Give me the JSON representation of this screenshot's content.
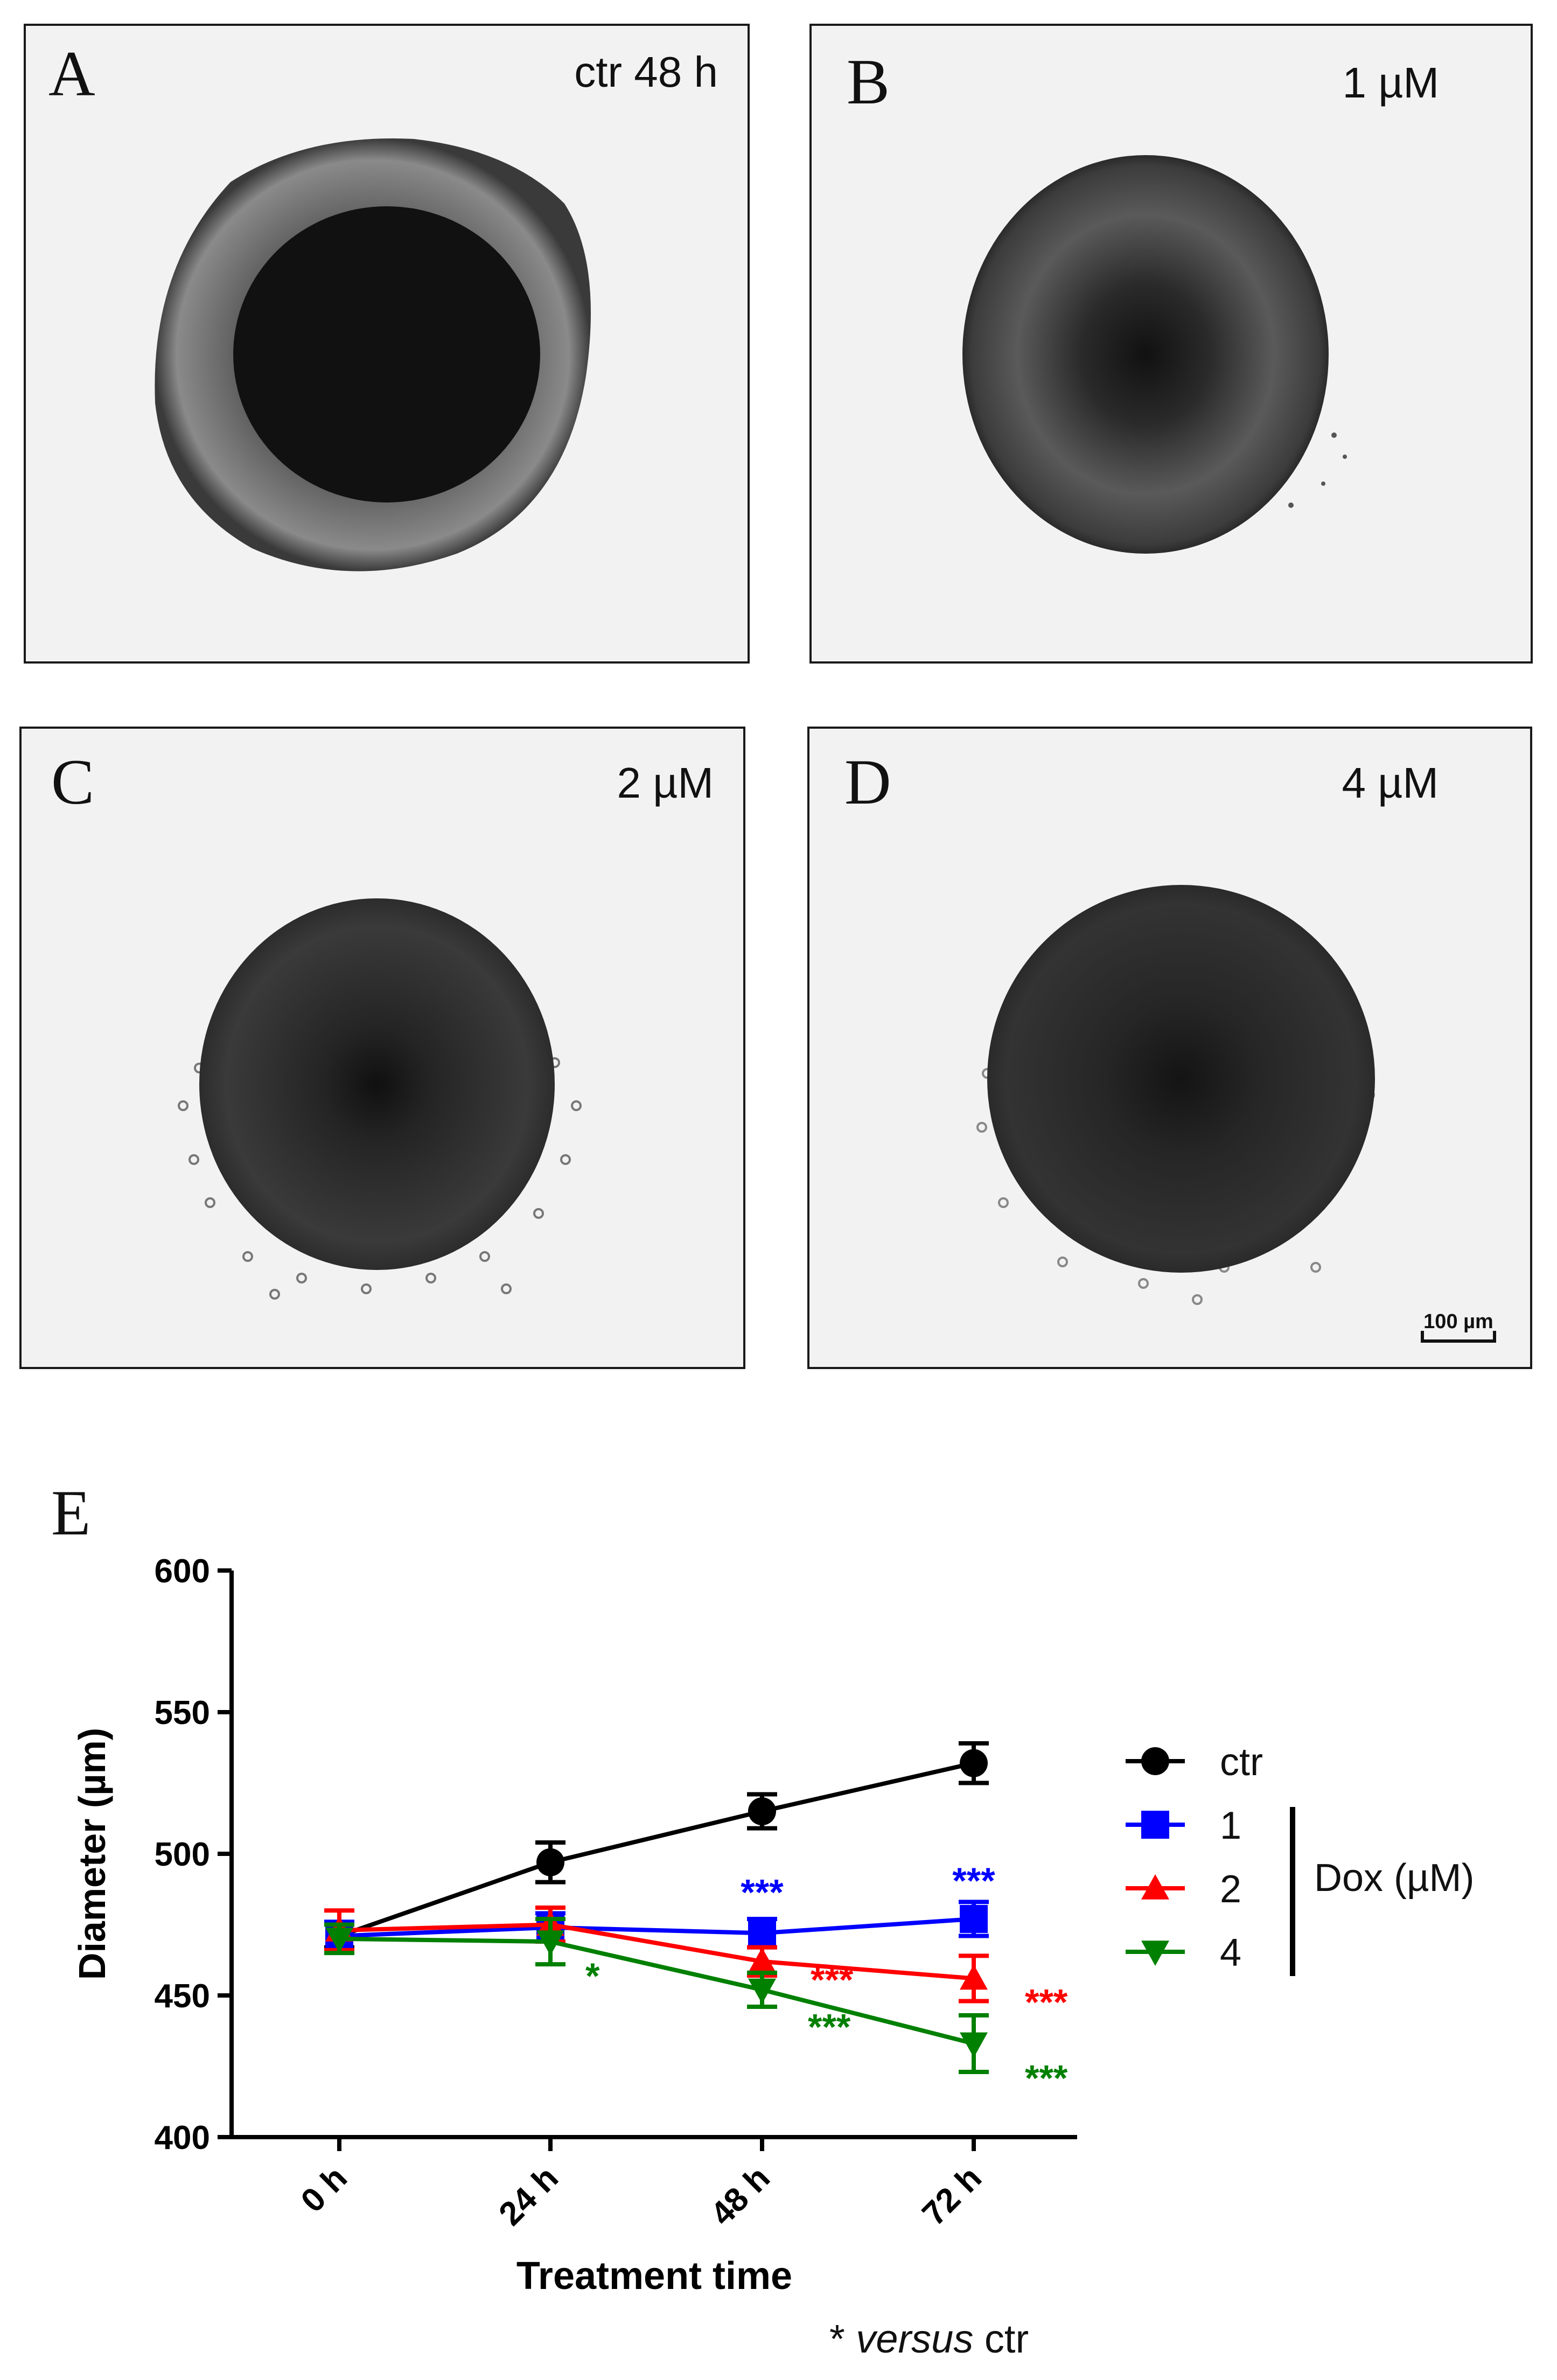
{
  "panels": [
    {
      "label": "A",
      "condition": "ctr 48 h"
    },
    {
      "label": "B",
      "condition": "1 µM"
    },
    {
      "label": "C",
      "condition": "2 µM"
    },
    {
      "label": "D",
      "condition": "4 µM"
    }
  ],
  "scale_bar": "100 µm",
  "panel_E_label": "E",
  "footnote": {
    "star": "*",
    "versus": "versus",
    "ctr": "ctr"
  },
  "colors": {
    "ctr": "#000000",
    "1": "#0000ff",
    "2": "#ff0000",
    "4": "#008000"
  },
  "chart_data": {
    "type": "line",
    "xlabel": "Treatment time",
    "ylabel": "Diameter (µm)",
    "x": [
      "0 h",
      "24 h",
      "48 h",
      "72 h"
    ],
    "ylim": [
      400,
      600
    ],
    "yticks": [
      400,
      450,
      500,
      550,
      600
    ],
    "legend_group_label": "Dox (µM)",
    "series": [
      {
        "name": "ctr",
        "values": [
          471,
          497,
          515,
          532
        ],
        "errors": [
          4,
          7,
          6,
          7
        ],
        "marker": "circle",
        "color": "#000000",
        "annotations": [
          "",
          "",
          "",
          ""
        ]
      },
      {
        "name": "1",
        "values": [
          471,
          474,
          472,
          477
        ],
        "errors": [
          5,
          5,
          5,
          6
        ],
        "marker": "square",
        "color": "#0000ff",
        "annotations": [
          "",
          "",
          "***",
          "***"
        ]
      },
      {
        "name": "2",
        "values": [
          473,
          475,
          462,
          456
        ],
        "errors": [
          7,
          6,
          5,
          8
        ],
        "marker": "triangle-up",
        "color": "#ff0000",
        "annotations": [
          "",
          "",
          "***",
          "***"
        ]
      },
      {
        "name": "4",
        "values": [
          470,
          469,
          452,
          433
        ],
        "errors": [
          5,
          8,
          6,
          10
        ],
        "marker": "triangle-down",
        "color": "#008000",
        "annotations": [
          "",
          "*",
          "***",
          "***"
        ]
      }
    ]
  }
}
